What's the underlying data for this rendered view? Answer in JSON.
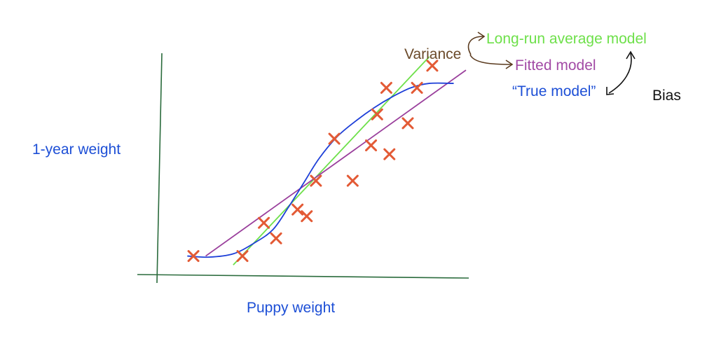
{
  "chart_data": {
    "type": "scatter",
    "xlabel": "Puppy weight",
    "ylabel": "1-year weight",
    "xlim": [
      0,
      100
    ],
    "ylim": [
      0,
      100
    ],
    "points": [
      {
        "x": 11,
        "y": 9
      },
      {
        "x": 27,
        "y": 9
      },
      {
        "x": 34,
        "y": 24
      },
      {
        "x": 38,
        "y": 17
      },
      {
        "x": 45,
        "y": 30
      },
      {
        "x": 48,
        "y": 27
      },
      {
        "x": 51,
        "y": 43
      },
      {
        "x": 57,
        "y": 62
      },
      {
        "x": 63,
        "y": 43
      },
      {
        "x": 69,
        "y": 59
      },
      {
        "x": 71,
        "y": 73
      },
      {
        "x": 75,
        "y": 55
      },
      {
        "x": 74,
        "y": 85
      },
      {
        "x": 81,
        "y": 69
      },
      {
        "x": 84,
        "y": 85
      },
      {
        "x": 89,
        "y": 95
      }
    ],
    "lines": [
      {
        "name": "Long-run average model",
        "color": "#6ee04a",
        "kind": "straight",
        "points": [
          {
            "x": 24,
            "y": 5
          },
          {
            "x": 88,
            "y": 99
          }
        ]
      },
      {
        "name": "Fitted model",
        "color": "#9a3f9c",
        "kind": "straight",
        "points": [
          {
            "x": 15,
            "y": 9
          },
          {
            "x": 100,
            "y": 93
          }
        ]
      },
      {
        "name": "“True model”",
        "color": "#1d3fd8",
        "kind": "curve",
        "points": [
          {
            "x": 9,
            "y": 9
          },
          {
            "x": 16,
            "y": 8.5
          },
          {
            "x": 24,
            "y": 10
          },
          {
            "x": 31,
            "y": 15
          },
          {
            "x": 37,
            "y": 21
          },
          {
            "x": 42,
            "y": 31
          },
          {
            "x": 47,
            "y": 42
          },
          {
            "x": 52,
            "y": 53
          },
          {
            "x": 58,
            "y": 63
          },
          {
            "x": 64,
            "y": 70
          },
          {
            "x": 70,
            "y": 76
          },
          {
            "x": 76,
            "y": 81
          },
          {
            "x": 82,
            "y": 85
          },
          {
            "x": 88,
            "y": 87
          },
          {
            "x": 96,
            "y": 87
          }
        ]
      }
    ]
  },
  "annotations": {
    "variance": "Variance",
    "bias": "Bias"
  },
  "colors": {
    "axis": "#2a6b3c",
    "marker": "#e35a35",
    "variance_arrow": "#5a3a1e",
    "bias_arrow": "#111111"
  }
}
